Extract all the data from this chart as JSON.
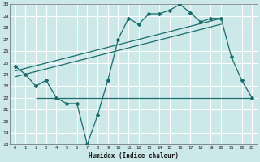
{
  "xlabel": "Humidex (Indice chaleur)",
  "bg_color": "#cce8e8",
  "line_color": "#1a6b6b",
  "ylim": [
    18,
    30
  ],
  "xlim": [
    -0.5,
    23.5
  ],
  "yticks": [
    18,
    19,
    20,
    21,
    22,
    23,
    24,
    25,
    26,
    27,
    28,
    29,
    30
  ],
  "xticks": [
    0,
    1,
    2,
    3,
    4,
    5,
    6,
    7,
    8,
    9,
    10,
    11,
    12,
    13,
    14,
    15,
    16,
    17,
    18,
    19,
    20,
    21,
    22,
    23
  ],
  "curve_x": [
    0,
    1,
    2,
    3,
    4,
    5,
    6,
    7,
    8,
    9,
    10,
    11,
    12,
    13,
    14,
    15,
    16,
    17,
    18,
    19,
    20,
    21,
    22,
    23
  ],
  "curve_y": [
    24.7,
    24.0,
    23.0,
    23.5,
    22.0,
    21.5,
    21.5,
    18.0,
    20.5,
    23.5,
    27.0,
    28.8,
    28.3,
    29.2,
    29.2,
    29.5,
    30.0,
    29.3,
    28.5,
    28.8,
    28.8,
    25.5,
    23.5,
    22.0
  ],
  "flat_line_y": 22.0,
  "flat_line_x_start": 2,
  "flat_line_x_end": 23,
  "reg_line1_x": [
    0,
    20
  ],
  "reg_line1_y": [
    24.3,
    28.8
  ],
  "reg_line2_x": [
    0,
    20
  ],
  "reg_line2_y": [
    23.8,
    28.3
  ],
  "grid_color": "#ffffff"
}
